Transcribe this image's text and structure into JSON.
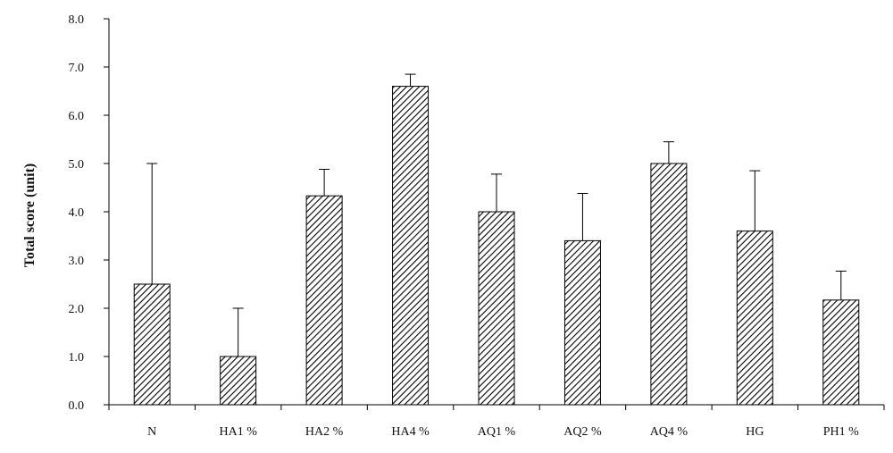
{
  "chart_data": {
    "type": "bar",
    "title": "",
    "xlabel": "",
    "ylabel": "Total score (unit)",
    "ylim": [
      0,
      8
    ],
    "yticks": [
      "0.0",
      "1.0",
      "2.0",
      "3.0",
      "4.0",
      "5.0",
      "6.0",
      "7.0",
      "8.0"
    ],
    "categories": [
      "N",
      "HA1 %",
      "HA2 %",
      "HA4 %",
      "AQ1 %",
      "AQ2 %",
      "AQ4 %",
      "HG",
      "PH1 %"
    ],
    "values": [
      2.5,
      1.0,
      4.33,
      6.6,
      4.0,
      3.4,
      5.0,
      3.6,
      2.17
    ],
    "error_upper": [
      2.5,
      1.0,
      0.55,
      0.25,
      0.78,
      0.98,
      0.45,
      1.25,
      0.6
    ],
    "grid": false,
    "legend": "none",
    "bar_fill": "diagonal-hatch",
    "colors": {
      "bar_stroke": "#000000",
      "hatch": "#000000",
      "background": "#ffffff"
    }
  }
}
